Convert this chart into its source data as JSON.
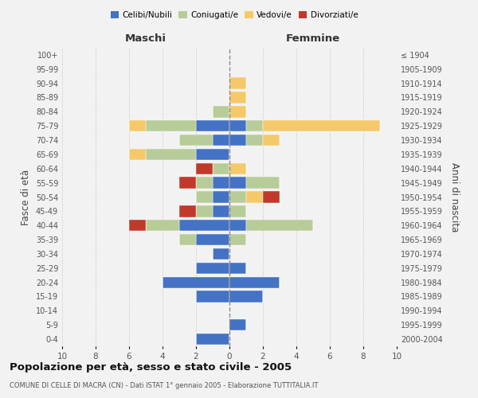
{
  "age_groups": [
    "0-4",
    "5-9",
    "10-14",
    "15-19",
    "20-24",
    "25-29",
    "30-34",
    "35-39",
    "40-44",
    "45-49",
    "50-54",
    "55-59",
    "60-64",
    "65-69",
    "70-74",
    "75-79",
    "80-84",
    "85-89",
    "90-94",
    "95-99",
    "100+"
  ],
  "birth_years": [
    "2000-2004",
    "1995-1999",
    "1990-1994",
    "1985-1989",
    "1980-1984",
    "1975-1979",
    "1970-1974",
    "1965-1969",
    "1960-1964",
    "1955-1959",
    "1950-1954",
    "1945-1949",
    "1940-1944",
    "1935-1939",
    "1930-1934",
    "1925-1929",
    "1920-1924",
    "1915-1919",
    "1910-1914",
    "1905-1909",
    "≤ 1904"
  ],
  "maschi": {
    "celibi": [
      2,
      0,
      0,
      2,
      4,
      2,
      1,
      2,
      3,
      1,
      1,
      1,
      0,
      2,
      1,
      2,
      0,
      0,
      0,
      0,
      0
    ],
    "coniugati": [
      0,
      0,
      0,
      0,
      0,
      0,
      0,
      1,
      2,
      1,
      1,
      1,
      1,
      3,
      2,
      3,
      1,
      0,
      0,
      0,
      0
    ],
    "vedovi": [
      0,
      0,
      0,
      0,
      0,
      0,
      0,
      0,
      0,
      0,
      0,
      0,
      0,
      1,
      0,
      1,
      0,
      0,
      0,
      0,
      0
    ],
    "divorziati": [
      0,
      0,
      0,
      0,
      0,
      0,
      0,
      0,
      1,
      1,
      0,
      1,
      1,
      0,
      0,
      0,
      0,
      0,
      0,
      0,
      0
    ]
  },
  "femmine": {
    "nubili": [
      0,
      1,
      0,
      2,
      3,
      1,
      0,
      0,
      1,
      0,
      0,
      1,
      0,
      0,
      1,
      1,
      0,
      0,
      0,
      0,
      0
    ],
    "coniugate": [
      0,
      0,
      0,
      0,
      0,
      0,
      0,
      1,
      4,
      1,
      1,
      2,
      0,
      0,
      1,
      1,
      0,
      0,
      0,
      0,
      0
    ],
    "vedove": [
      0,
      0,
      0,
      0,
      0,
      0,
      0,
      0,
      0,
      0,
      1,
      0,
      1,
      0,
      1,
      7,
      1,
      1,
      1,
      0,
      0
    ],
    "divorziate": [
      0,
      0,
      0,
      0,
      0,
      0,
      0,
      0,
      0,
      0,
      1,
      0,
      0,
      0,
      0,
      0,
      0,
      0,
      0,
      0,
      0
    ]
  },
  "colors": {
    "celibi_nubili": "#4472c4",
    "coniugati_e": "#b8cc99",
    "vedovi_e": "#f5c96a",
    "divorziati_e": "#c0392b"
  },
  "xlim": 10,
  "title": "Popolazione per età, sesso e stato civile - 2005",
  "subtitle": "COMUNE DI CELLE DI MACRA (CN) - Dati ISTAT 1° gennaio 2005 - Elaborazione TUTTITALIA.IT",
  "ylabel_left": "Fasce di età",
  "ylabel_right": "Anni di nascita",
  "xlabel_left": "Maschi",
  "xlabel_right": "Femmine",
  "bg_color": "#f2f2f2",
  "grid_color": "#cccccc"
}
